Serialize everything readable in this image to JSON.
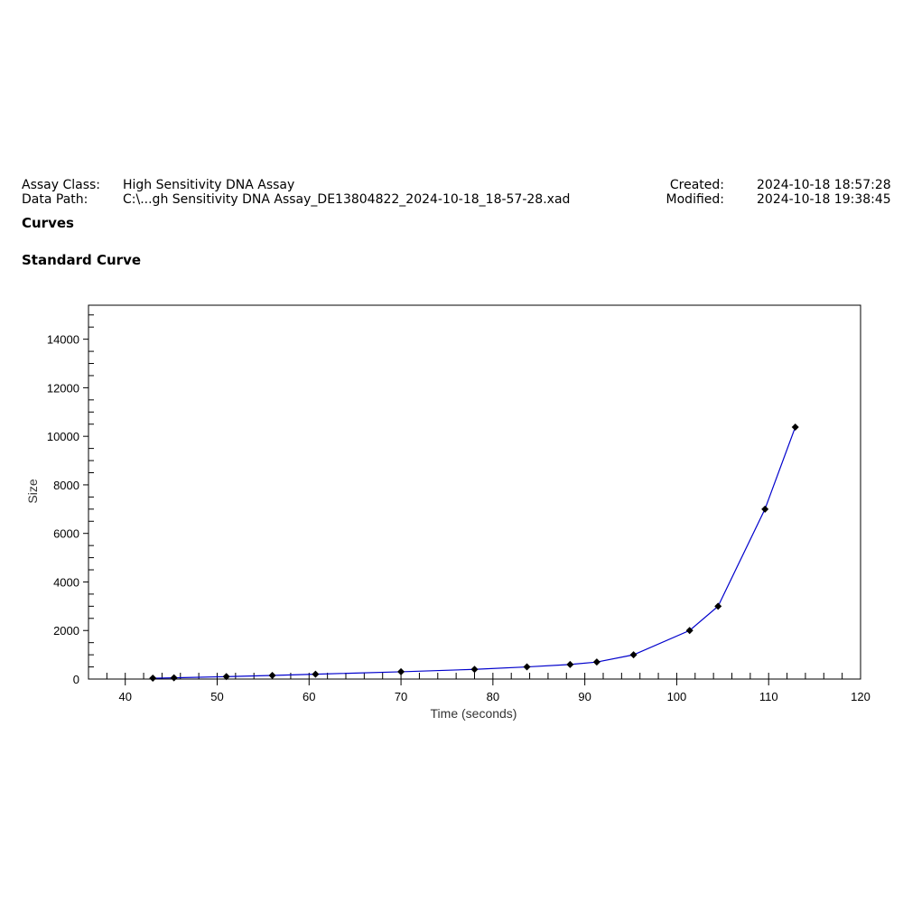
{
  "header": {
    "assay_class_label": "Assay Class:",
    "assay_class_value": "High Sensitivity DNA Assay",
    "data_path_label": "Data Path:",
    "data_path_value": "C:\\...gh Sensitivity DNA Assay_DE13804822_2024-10-18_18-57-28.xad",
    "created_label": "Created:",
    "created_value": "2024-10-18 18:57:28",
    "modified_label": "Modified:",
    "modified_value": "2024-10-18 19:38:45"
  },
  "sections": {
    "curves": "Curves",
    "standard_curve": "Standard Curve"
  },
  "colors": {
    "line": "#0000cc",
    "marker": "#000000",
    "frame": "#000000",
    "highlight_tick": "#800080"
  },
  "chart_data": {
    "type": "line",
    "title": "",
    "xlabel": "Time (seconds)",
    "ylabel": "Size",
    "xlim": [
      36,
      120
    ],
    "ylim": [
      0,
      15400
    ],
    "x_ticks": [
      40,
      50,
      60,
      70,
      80,
      90,
      100,
      110,
      120
    ],
    "y_ticks": [
      0,
      2000,
      4000,
      6000,
      8000,
      10000,
      12000,
      14000
    ],
    "grid": false,
    "legend": "none",
    "series": [
      {
        "x": [
          43.0,
          45.3,
          51.0,
          56.0,
          60.7,
          70.0,
          78.0,
          83.7,
          88.4,
          91.3,
          95.3,
          101.4,
          104.5,
          109.6,
          112.9
        ],
        "y": [
          35,
          50,
          100,
          150,
          200,
          300,
          400,
          500,
          600,
          700,
          1000,
          2000,
          3000,
          7000,
          10380
        ]
      }
    ]
  }
}
